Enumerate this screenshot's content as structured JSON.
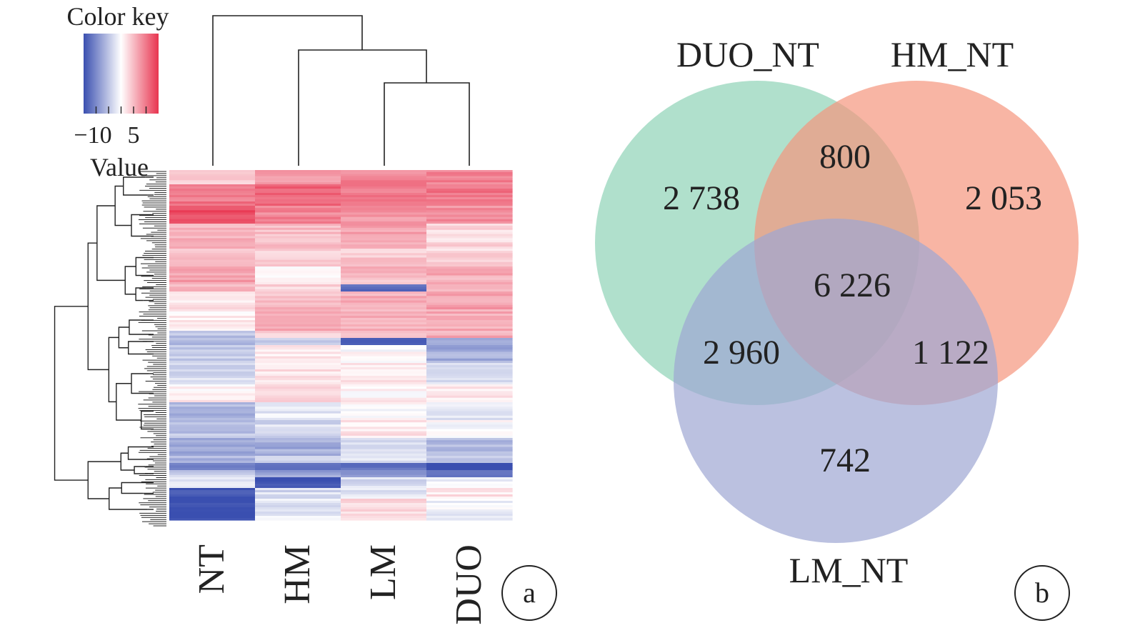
{
  "colors": {
    "low": "#3a4fb0",
    "mid": "#ffffff",
    "high": "#e8344f",
    "venn_duo": "#8fd3b6",
    "venn_hm": "#f5957e",
    "venn_lm": "#9ea7d3",
    "ink": "#222222"
  },
  "chart_data": [
    {
      "type": "heatmap",
      "panel_label": "a",
      "color_key": {
        "title": "Color key",
        "value_label": "Value",
        "tick_labels": [
          "−10",
          "5"
        ],
        "range": [
          -15,
          15
        ]
      },
      "columns": [
        "NT",
        "HM",
        "LM",
        "DUO"
      ],
      "column_dendrogram": "((NT,(HM,(LM,DUO))))",
      "row_dendrogram": true,
      "row_blocks": [
        {
          "frac": 0.04,
          "values": [
            4,
            8,
            9,
            9
          ]
        },
        {
          "frac": 0.06,
          "values": [
            10,
            11,
            10,
            10
          ]
        },
        {
          "frac": 0.05,
          "values": [
            13,
            9,
            8,
            8
          ]
        },
        {
          "frac": 0.07,
          "values": [
            6,
            5,
            7,
            3
          ]
        },
        {
          "frac": 0.05,
          "values": [
            5,
            3,
            4,
            3
          ]
        },
        {
          "frac": 0.05,
          "values": [
            7,
            1,
            5,
            6
          ]
        },
        {
          "frac": 0.02,
          "values": [
            5,
            3,
            -12,
            6
          ]
        },
        {
          "frac": 0.05,
          "values": [
            2,
            5,
            6,
            7
          ]
        },
        {
          "frac": 0.06,
          "values": [
            1,
            6,
            6,
            6
          ]
        },
        {
          "frac": 0.02,
          "values": [
            -5,
            3,
            5,
            6
          ]
        },
        {
          "frac": 0.02,
          "values": [
            -6,
            -4,
            -14,
            -6
          ]
        },
        {
          "frac": 0.05,
          "values": [
            -4,
            2,
            0,
            -7
          ]
        },
        {
          "frac": 0.06,
          "values": [
            -3,
            2,
            2,
            -3
          ]
        },
        {
          "frac": 0.05,
          "values": [
            1,
            3,
            1,
            2
          ]
        },
        {
          "frac": 0.05,
          "values": [
            -6,
            -2,
            0,
            -2
          ]
        },
        {
          "frac": 0.05,
          "values": [
            -5,
            -3,
            2,
            0
          ]
        },
        {
          "frac": 0.05,
          "values": [
            -8,
            -7,
            -3,
            -6
          ]
        },
        {
          "frac": 0.02,
          "values": [
            -6,
            -4,
            -3,
            -4
          ]
        },
        {
          "frac": 0.02,
          "values": [
            -10,
            -11,
            -12,
            -16
          ]
        },
        {
          "frac": 0.02,
          "values": [
            -4,
            -8,
            -8,
            -12
          ]
        },
        {
          "frac": 0.03,
          "values": [
            -2,
            -15,
            -3,
            -1
          ]
        },
        {
          "frac": 0.03,
          "values": [
            -15,
            -3,
            -2,
            2
          ]
        },
        {
          "frac": 0.06,
          "values": [
            -15,
            -2,
            3,
            -1
          ]
        }
      ]
    },
    {
      "type": "venn",
      "panel_label": "b",
      "sets": [
        "DUO_NT",
        "HM_NT",
        "LM_NT"
      ],
      "regions": [
        {
          "sets": [
            "DUO_NT"
          ],
          "value": "2 738"
        },
        {
          "sets": [
            "HM_NT"
          ],
          "value": "2 053"
        },
        {
          "sets": [
            "LM_NT"
          ],
          "value": "742"
        },
        {
          "sets": [
            "DUO_NT",
            "HM_NT"
          ],
          "value": "800"
        },
        {
          "sets": [
            "DUO_NT",
            "LM_NT"
          ],
          "value": "2 960"
        },
        {
          "sets": [
            "HM_NT",
            "LM_NT"
          ],
          "value": "1 122"
        },
        {
          "sets": [
            "DUO_NT",
            "HM_NT",
            "LM_NT"
          ],
          "value": "6 226"
        }
      ]
    }
  ]
}
